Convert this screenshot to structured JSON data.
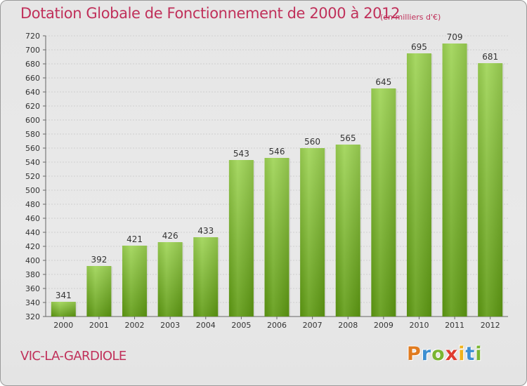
{
  "title": "Dotation Globale de Fonctionnement de 2000 à 2012",
  "unit": "(en milliers d'€)",
  "commune": "VIC-LA-GARDIOLE",
  "logo": "Proxiti",
  "colors": {
    "title": "#c0305a",
    "bar_top": "#9ed454",
    "bar_bottom": "#5e9a12",
    "grid": "#cfcfcf"
  },
  "chart_data": {
    "type": "bar",
    "categories": [
      "2000",
      "2001",
      "2002",
      "2003",
      "2004",
      "2005",
      "2006",
      "2007",
      "2008",
      "2009",
      "2010",
      "2011",
      "2012"
    ],
    "values": [
      341,
      392,
      421,
      426,
      433,
      543,
      546,
      560,
      565,
      645,
      695,
      709,
      681
    ],
    "ylim": [
      320,
      720
    ],
    "yticks": [
      320,
      340,
      360,
      380,
      400,
      420,
      440,
      460,
      480,
      500,
      520,
      540,
      560,
      580,
      600,
      620,
      640,
      660,
      680,
      700,
      720
    ],
    "grid": true
  }
}
